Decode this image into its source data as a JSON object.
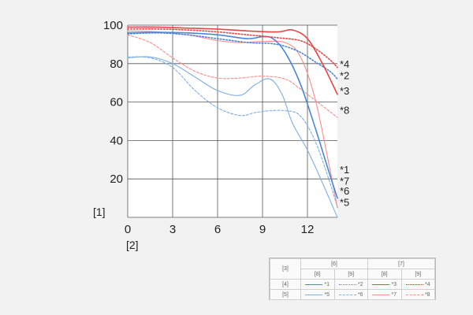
{
  "chart_data": {
    "type": "line",
    "xlim": [
      0,
      14
    ],
    "ylim": [
      0,
      100
    ],
    "x_ticks": [
      "0",
      "3",
      "6",
      "9",
      "12"
    ],
    "y_ticks": [
      "20",
      "40",
      "60",
      "80",
      "100"
    ],
    "xlabel": "[2]",
    "ylabel": "[1]",
    "grid": true,
    "series": [
      {
        "name": "*1",
        "color": "#4a86d8",
        "width": 1.6,
        "dash": "solid",
        "x": [
          0,
          2,
          4,
          6,
          8,
          9,
          9.7,
          10.5,
          11.5,
          12.5,
          13.5,
          14
        ],
        "y": [
          96,
          96.3,
          96,
          95,
          93,
          94,
          93,
          86,
          70,
          47,
          22,
          10
        ]
      },
      {
        "name": "*2",
        "color": "#4a86d8",
        "width": 1.6,
        "dash": "dotted",
        "x": [
          0,
          2,
          4,
          6,
          8,
          9.5,
          10.5,
          11.5,
          12.5,
          13.5,
          14
        ],
        "y": [
          95.5,
          96,
          95,
          93,
          91,
          90.5,
          89,
          86,
          81,
          76,
          72
        ]
      },
      {
        "name": "*3",
        "color": "#e84545",
        "width": 1.6,
        "dash": "solid",
        "x": [
          0,
          2,
          4,
          6,
          8,
          10,
          11,
          12,
          13,
          14
        ],
        "y": [
          99,
          99,
          98.5,
          98,
          97,
          96.5,
          97.5,
          93,
          80,
          64
        ]
      },
      {
        "name": "*4",
        "color": "#e84545",
        "width": 1.6,
        "dash": "dotted",
        "x": [
          0,
          2,
          4,
          6,
          8,
          10,
          11.5,
          12.5,
          13.5,
          14
        ],
        "y": [
          98,
          98,
          97.5,
          96.5,
          95,
          93.5,
          92,
          88,
          82,
          78
        ]
      },
      {
        "name": "*5",
        "color": "#7faee0",
        "width": 1.1,
        "dash": "solid",
        "x": [
          0,
          1.5,
          3,
          4.5,
          6,
          7.5,
          8.5,
          9.5,
          10.3,
          11,
          12,
          13,
          14
        ],
        "y": [
          83,
          83.5,
          80,
          73,
          66,
          63.5,
          69,
          72,
          64,
          49,
          35,
          18,
          0
        ]
      },
      {
        "name": "*6",
        "color": "#7faee0",
        "width": 1.1,
        "dash": "dashed",
        "x": [
          0,
          1.5,
          3,
          4.5,
          6,
          7.5,
          8.5,
          9.5,
          10.5,
          11.5,
          12.5,
          13.5,
          14
        ],
        "y": [
          83.5,
          83,
          78,
          66,
          57,
          53,
          54.5,
          55.5,
          55.5,
          53,
          40,
          18,
          5
        ]
      },
      {
        "name": "*7",
        "color": "#ff8a8a",
        "width": 1.1,
        "dash": "solid",
        "x": [
          0,
          2,
          4,
          6,
          7.5,
          9,
          10.5,
          11.5,
          12.5,
          13.5,
          14
        ],
        "y": [
          97,
          96.5,
          95,
          92,
          91,
          91.5,
          91,
          84,
          62,
          25,
          5
        ]
      },
      {
        "name": "*8",
        "color": "#ff8a8a",
        "width": 1.1,
        "dash": "dashed",
        "x": [
          0,
          1.5,
          3,
          4.5,
          6,
          7.5,
          9,
          10.5,
          11.5,
          12.5,
          13.5,
          14
        ],
        "y": [
          95,
          91,
          83,
          76,
          72.5,
          72.5,
          73.5,
          72,
          67,
          61,
          55,
          52
        ]
      }
    ],
    "series_labels": [
      {
        "text": "*4",
        "y": 80
      },
      {
        "text": "*2",
        "y": 74
      },
      {
        "text": "*3",
        "y": 66
      },
      {
        "text": "*8",
        "y": 56
      },
      {
        "text": "*1",
        "y": 25
      },
      {
        "text": "*7",
        "y": 19
      },
      {
        "text": "*6",
        "y": 14
      },
      {
        "text": "*5",
        "y": 8
      }
    ]
  },
  "legend": {
    "corner": "[3]",
    "col_groups": [
      "[6]",
      "[7]"
    ],
    "subcols": [
      "[8]",
      "[9]",
      "[8]",
      "[9]"
    ],
    "rows": [
      {
        "label": "[4]",
        "entries": [
          "*1",
          "*2",
          "*3",
          "*4"
        ]
      },
      {
        "label": "[5]",
        "entries": [
          "*5",
          "*6",
          "*7",
          "*8"
        ]
      }
    ]
  }
}
